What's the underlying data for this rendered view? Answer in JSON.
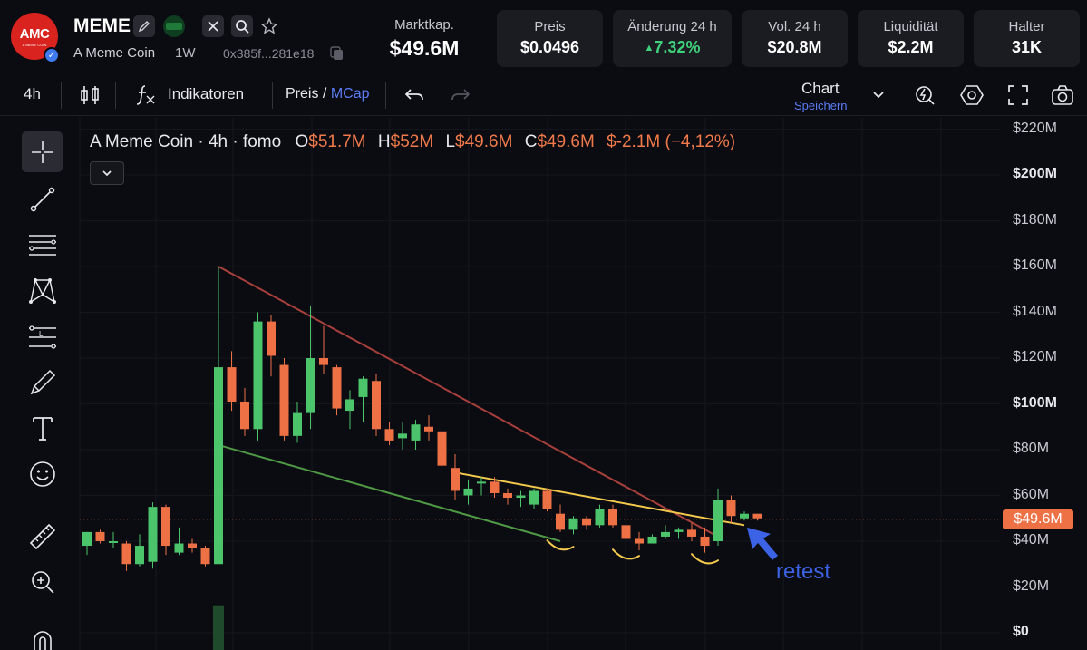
{
  "header": {
    "logo_text": "AMC",
    "logo_subtext": "A MEME COIN",
    "symbol": "MEME",
    "name": "A Meme Coin",
    "timeframe_pill": "1W",
    "address": "0x385f...281e18",
    "mcap_label": "Marktkap.",
    "mcap_value": "$49.6M",
    "stats": [
      {
        "label": "Preis",
        "value": "$0.0496"
      },
      {
        "label": "Änderung 24 h",
        "value": "7.32%",
        "direction": "up"
      },
      {
        "label": "Vol. 24 h",
        "value": "$20.8M"
      },
      {
        "label": "Liquidität",
        "value": "$2.2M"
      },
      {
        "label": "Halter",
        "value": "31K"
      }
    ],
    "icons": [
      "pen-icon",
      "listing-badge-icon",
      "x-twitter-icon",
      "search-icon",
      "star-icon",
      "copy-icon",
      "verified-icon"
    ]
  },
  "toolbar": {
    "interval": "4h",
    "indicators_label": "Indikatoren",
    "price_label": "Preis",
    "slash": "/",
    "mcap_label": "MCap",
    "chart_label": "Chart",
    "save_label": "Speichern",
    "icons": [
      "candles-icon",
      "fx-icon",
      "undo-icon",
      "redo-icon",
      "chevron-down-icon",
      "lightning-icon",
      "settings-hex-icon",
      "fullscreen-icon",
      "camera-icon"
    ]
  },
  "left_tools": [
    "crosshair-icon",
    "trendline-icon",
    "horizontal-lines-icon",
    "pattern-icon",
    "fib-icon",
    "brush-icon",
    "text-tool-icon",
    "emoji-icon",
    "ruler-icon",
    "zoom-in-icon",
    "magnet-icon"
  ],
  "legend": {
    "title": "A Meme Coin · 4h · fomo",
    "o_label": "O",
    "o_value": "$51.7M",
    "h_label": "H",
    "h_value": "$52M",
    "l_label": "L",
    "l_value": "$49.6M",
    "c_label": "C",
    "c_value": "$49.6M",
    "change": "$-2.1M (−4,12%)"
  },
  "annotation": "retest",
  "colors": {
    "up": "#4cc46b",
    "down": "#ee7146",
    "bg": "#0b0b12",
    "resistance_line": "#a8403c",
    "support_line": "#4f9a45",
    "retest_line": "#f2c94c",
    "arrow": "#3c63e5"
  },
  "chart_data": {
    "type": "candlestick",
    "y_unit": "market cap (USD, millions)",
    "ylim": [
      0,
      225
    ],
    "y_ticks": [
      "$220M",
      "$200M",
      "$180M",
      "$160M",
      "$140M",
      "$120M",
      "$100M",
      "$80M",
      "$60M",
      "$40M",
      "$20M",
      "$0"
    ],
    "bold_ticks": [
      "$200M",
      "$100M",
      "$0"
    ],
    "current_price_label": "$49.6M",
    "current_price": 49.6,
    "candles": [
      {
        "o": 38,
        "h": 44,
        "l": 34,
        "c": 44
      },
      {
        "o": 44,
        "h": 45,
        "l": 39,
        "c": 40
      },
      {
        "o": 40,
        "h": 44,
        "l": 37,
        "c": 40
      },
      {
        "o": 39,
        "h": 40,
        "l": 27,
        "c": 30
      },
      {
        "o": 30,
        "h": 43,
        "l": 29,
        "c": 38
      },
      {
        "o": 31,
        "h": 57,
        "l": 28,
        "c": 55
      },
      {
        "o": 55,
        "h": 56,
        "l": 34,
        "c": 38
      },
      {
        "o": 35,
        "h": 46,
        "l": 34,
        "c": 39
      },
      {
        "o": 39,
        "h": 41,
        "l": 35,
        "c": 37
      },
      {
        "o": 37,
        "h": 38,
        "l": 29,
        "c": 30
      },
      {
        "o": 30,
        "h": 160,
        "l": 30,
        "c": 116
      },
      {
        "o": 116,
        "h": 123,
        "l": 97,
        "c": 101
      },
      {
        "o": 101,
        "h": 107,
        "l": 86,
        "c": 89
      },
      {
        "o": 89,
        "h": 140,
        "l": 84,
        "c": 136
      },
      {
        "o": 136,
        "h": 139,
        "l": 112,
        "c": 121
      },
      {
        "o": 117,
        "h": 120,
        "l": 84,
        "c": 86
      },
      {
        "o": 86,
        "h": 101,
        "l": 83,
        "c": 96
      },
      {
        "o": 96,
        "h": 143,
        "l": 89,
        "c": 120
      },
      {
        "o": 120,
        "h": 134,
        "l": 113,
        "c": 117
      },
      {
        "o": 116,
        "h": 117,
        "l": 95,
        "c": 98
      },
      {
        "o": 97,
        "h": 106,
        "l": 89,
        "c": 102
      },
      {
        "o": 103,
        "h": 112,
        "l": 92,
        "c": 111
      },
      {
        "o": 110,
        "h": 113,
        "l": 86,
        "c": 89
      },
      {
        "o": 89,
        "h": 92,
        "l": 82,
        "c": 84
      },
      {
        "o": 85,
        "h": 92,
        "l": 80,
        "c": 87
      },
      {
        "o": 84,
        "h": 93,
        "l": 80,
        "c": 91
      },
      {
        "o": 90,
        "h": 95,
        "l": 84,
        "c": 88
      },
      {
        "o": 88,
        "h": 92,
        "l": 70,
        "c": 73
      },
      {
        "o": 72,
        "h": 78,
        "l": 58,
        "c": 62
      },
      {
        "o": 60,
        "h": 67,
        "l": 56,
        "c": 63
      },
      {
        "o": 66,
        "h": 68,
        "l": 60,
        "c": 66
      },
      {
        "o": 66,
        "h": 68,
        "l": 59,
        "c": 61
      },
      {
        "o": 61,
        "h": 63,
        "l": 56,
        "c": 59
      },
      {
        "o": 59,
        "h": 62,
        "l": 55,
        "c": 60
      },
      {
        "o": 56,
        "h": 63,
        "l": 54,
        "c": 62
      },
      {
        "o": 62,
        "h": 63,
        "l": 53,
        "c": 54
      },
      {
        "o": 52,
        "h": 56,
        "l": 44,
        "c": 45
      },
      {
        "o": 45,
        "h": 51,
        "l": 43,
        "c": 50
      },
      {
        "o": 50,
        "h": 51,
        "l": 45,
        "c": 47
      },
      {
        "o": 47,
        "h": 56,
        "l": 46,
        "c": 54
      },
      {
        "o": 54,
        "h": 56,
        "l": 46,
        "c": 47
      },
      {
        "o": 47,
        "h": 50,
        "l": 34,
        "c": 41
      },
      {
        "o": 41,
        "h": 44,
        "l": 36,
        "c": 39
      },
      {
        "o": 39,
        "h": 43,
        "l": 39,
        "c": 42
      },
      {
        "o": 42,
        "h": 47,
        "l": 41,
        "c": 44
      },
      {
        "o": 44,
        "h": 46,
        "l": 41,
        "c": 45
      },
      {
        "o": 45,
        "h": 48,
        "l": 40,
        "c": 42
      },
      {
        "o": 42,
        "h": 46,
        "l": 35,
        "c": 38
      },
      {
        "o": 40,
        "h": 63,
        "l": 38,
        "c": 58
      },
      {
        "o": 58,
        "h": 60,
        "l": 48,
        "c": 51
      },
      {
        "o": 50,
        "h": 53,
        "l": 49,
        "c": 52
      },
      {
        "o": 52,
        "h": 52,
        "l": 49,
        "c": 50
      }
    ],
    "volume_bar_candle_index": 10,
    "volume_bar_level": 12,
    "trendlines": [
      {
        "name": "resistance",
        "from": {
          "i": 10,
          "v": 160
        },
        "to": {
          "i": 48,
          "v": 42
        }
      },
      {
        "name": "support",
        "from": {
          "i": 10,
          "v": 82
        },
        "to": {
          "i": 36,
          "v": 40
        }
      },
      {
        "name": "retest",
        "from": {
          "i": 28,
          "v": 70
        },
        "to": {
          "i": 50,
          "v": 47
        }
      }
    ],
    "arcs": [
      {
        "from_i": 35,
        "to_i": 37,
        "v": 38
      },
      {
        "from_i": 40,
        "to_i": 42,
        "v": 34
      },
      {
        "from_i": 46,
        "to_i": 48,
        "v": 32
      }
    ],
    "arrow_at": {
      "i": 50,
      "v": 44
    }
  }
}
